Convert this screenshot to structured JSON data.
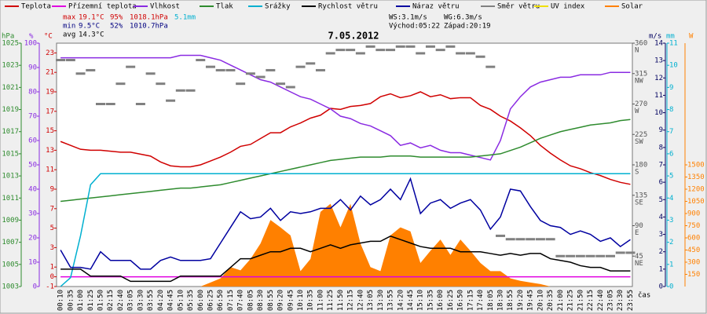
{
  "chart_data": {
    "type": "meteogram",
    "title": "7.05.2012",
    "xlabel": "čas",
    "categories": [
      "00:10",
      "00:35",
      "01:00",
      "01:25",
      "01:50",
      "02:15",
      "02:40",
      "03:05",
      "03:30",
      "03:55",
      "04:20",
      "04:45",
      "05:10",
      "05:35",
      "06:00",
      "06:25",
      "06:50",
      "07:15",
      "07:40",
      "08:05",
      "08:30",
      "08:55",
      "09:20",
      "09:45",
      "10:10",
      "10:35",
      "11:00",
      "11:25",
      "11:50",
      "12:15",
      "12:40",
      "13:05",
      "13:30",
      "13:55",
      "14:20",
      "14:45",
      "15:10",
      "15:35",
      "16:00",
      "16:25",
      "16:50",
      "17:15",
      "17:40",
      "18:05",
      "18:30",
      "18:55",
      "19:20",
      "19:45",
      "20:10",
      "20:35",
      "21:00",
      "21:25",
      "21:50",
      "22:15",
      "22:40",
      "23:05",
      "23:30",
      "23:55"
    ],
    "stats": [
      [
        "max",
        "19.1°C",
        "95%",
        "1018.1hPa",
        "5.1mm"
      ],
      [
        "min",
        "9.5°C",
        "52%",
        "1010.7hPa"
      ],
      [
        "avg",
        "14.3°C"
      ]
    ],
    "info": [
      [
        "WS:3.1m/s",
        "WG:6.3m/s"
      ],
      [
        "Východ:05:22",
        "Západ:20:19"
      ]
    ],
    "axes": {
      "pressure": {
        "title": "hPa",
        "color": "#2e8b2e",
        "lim": [
          1003,
          1025
        ],
        "ticks": [
          1003,
          1005,
          1007,
          1009,
          1011,
          1013,
          1015,
          1017,
          1019,
          1021,
          1023,
          1025
        ]
      },
      "humidity": {
        "title": "%",
        "color": "#8a2be2",
        "lim": [
          0,
          100
        ],
        "ticks": [
          0,
          10,
          20,
          30,
          40,
          50,
          60,
          70,
          80,
          90,
          100
        ]
      },
      "temperature": {
        "title": "°C",
        "color": "#d00000",
        "lim": [
          -1,
          24
        ],
        "ticks": [
          -1,
          0,
          1,
          3,
          5,
          7,
          9,
          11,
          13,
          15,
          17,
          19,
          21,
          23
        ]
      },
      "direction": {
        "color": "#555555",
        "lim": [
          0,
          360
        ],
        "ticks": [
          45,
          90,
          135,
          180,
          225,
          270,
          315,
          360
        ],
        "compass": [
          "NE",
          "E",
          "SE",
          "S",
          "SW",
          "W",
          "NW",
          "N"
        ]
      },
      "wind": {
        "title": "m/s",
        "color": "#000060",
        "lim": [
          0,
          14
        ],
        "ticks": [
          0,
          1,
          2,
          3,
          4,
          5,
          6,
          7,
          8,
          9,
          10,
          11,
          12,
          13,
          14
        ]
      },
      "rain": {
        "title": "mm",
        "color": "#00b0d0",
        "lim": [
          0,
          11
        ],
        "ticks": [
          0,
          1,
          2,
          3,
          4,
          5,
          6,
          7,
          8,
          9,
          10,
          11
        ]
      },
      "solar": {
        "title": "W",
        "color": "#ff8000",
        "lim": [
          0,
          3000
        ],
        "ticks": [
          150,
          300,
          450,
          600,
          750,
          900,
          1050,
          1200,
          1350,
          1500
        ]
      }
    },
    "series": [
      {
        "name": "Teplota",
        "color": "#d00000",
        "axis": "temperature",
        "style": "line",
        "values": [
          13.9,
          13.5,
          13.1,
          13.0,
          13.0,
          12.9,
          12.8,
          12.8,
          12.6,
          12.4,
          11.8,
          11.4,
          11.3,
          11.3,
          11.5,
          11.9,
          12.3,
          12.8,
          13.4,
          13.6,
          14.2,
          14.8,
          14.8,
          15.4,
          15.8,
          16.3,
          16.6,
          17.3,
          17.2,
          17.5,
          17.6,
          17.8,
          18.5,
          18.8,
          18.4,
          18.6,
          19.0,
          18.5,
          18.7,
          18.3,
          18.4,
          18.4,
          17.6,
          17.2,
          16.5,
          16.0,
          15.3,
          14.5,
          13.5,
          12.7,
          12.0,
          11.4,
          11.1,
          10.7,
          10.4,
          10.0,
          9.7,
          9.5
        ]
      },
      {
        "name": "Přízemní teplota",
        "color": "#e000e0",
        "axis": "temperature",
        "style": "line",
        "values": [
          0,
          0,
          0,
          0,
          0,
          0,
          0,
          0,
          0,
          0,
          0,
          0,
          0,
          0,
          0,
          0,
          0,
          0,
          0,
          0,
          0,
          0,
          0,
          0,
          0,
          0,
          0,
          0,
          0,
          0,
          0,
          0,
          0,
          0,
          0,
          0,
          0,
          0,
          0,
          0,
          0,
          0,
          0,
          0,
          0,
          0,
          0,
          0,
          0,
          0,
          0,
          0,
          0,
          0,
          0,
          0,
          0,
          0
        ]
      },
      {
        "name": "Vlhkost",
        "color": "#8a2be2",
        "axis": "humidity",
        "style": "line",
        "values": [
          94,
          94,
          94,
          94,
          94,
          94,
          94,
          94,
          94,
          94,
          94,
          94,
          95,
          95,
          95,
          94,
          93,
          91,
          89,
          87,
          85,
          84,
          82,
          80,
          78,
          77,
          75,
          73,
          70,
          69,
          67,
          66,
          64,
          62,
          58,
          59,
          57,
          58,
          56,
          55,
          55,
          54,
          53,
          52,
          60,
          73,
          78,
          82,
          84,
          85,
          86,
          86,
          87,
          87,
          87,
          88,
          88,
          88
        ]
      },
      {
        "name": "Tlak",
        "color": "#2e8b2e",
        "axis": "pressure",
        "style": "line",
        "values": [
          1010.7,
          1010.8,
          1010.9,
          1011.0,
          1011.1,
          1011.2,
          1011.3,
          1011.4,
          1011.5,
          1011.6,
          1011.7,
          1011.8,
          1011.9,
          1011.9,
          1012.0,
          1012.1,
          1012.2,
          1012.4,
          1012.6,
          1012.8,
          1013.0,
          1013.2,
          1013.4,
          1013.6,
          1013.8,
          1014.0,
          1014.2,
          1014.4,
          1014.5,
          1014.6,
          1014.7,
          1014.7,
          1014.7,
          1014.8,
          1014.8,
          1014.8,
          1014.7,
          1014.7,
          1014.7,
          1014.7,
          1014.7,
          1014.7,
          1014.8,
          1014.9,
          1015.0,
          1015.3,
          1015.6,
          1016.0,
          1016.4,
          1016.7,
          1017.0,
          1017.2,
          1017.4,
          1017.6,
          1017.7,
          1017.8,
          1018.0,
          1018.1
        ]
      },
      {
        "name": "Srážky",
        "color": "#00b0d0",
        "axis": "rain",
        "style": "line",
        "values": [
          0,
          0.4,
          2.3,
          4.6,
          5.1,
          5.1,
          5.1,
          5.1,
          5.1,
          5.1,
          5.1,
          5.1,
          5.1,
          5.1,
          5.1,
          5.1,
          5.1,
          5.1,
          5.1,
          5.1,
          5.1,
          5.1,
          5.1,
          5.1,
          5.1,
          5.1,
          5.1,
          5.1,
          5.1,
          5.1,
          5.1,
          5.1,
          5.1,
          5.1,
          5.1,
          5.1,
          5.1,
          5.1,
          5.1,
          5.1,
          5.1,
          5.1,
          5.1,
          5.1,
          5.1,
          5.1,
          5.1,
          5.1,
          5.1,
          5.1,
          5.1,
          5.1,
          5.1,
          5.1,
          5.1,
          5.1,
          5.1,
          5.1
        ]
      },
      {
        "name": "Rychlost větru",
        "color": "#000000",
        "axis": "wind",
        "style": "line",
        "values": [
          1.0,
          1.0,
          1.0,
          0.6,
          0.6,
          0.6,
          0.6,
          0.3,
          0.3,
          0.3,
          0.3,
          0.3,
          0.6,
          0.6,
          0.6,
          0.6,
          0.6,
          1.1,
          1.6,
          1.6,
          1.8,
          2.0,
          2.0,
          2.2,
          2.2,
          2.0,
          2.2,
          2.4,
          2.2,
          2.4,
          2.5,
          2.6,
          2.6,
          2.9,
          2.7,
          2.5,
          2.3,
          2.2,
          2.2,
          2.2,
          2.0,
          2.0,
          2.0,
          1.9,
          1.8,
          1.9,
          1.8,
          1.9,
          1.9,
          1.6,
          1.5,
          1.4,
          1.2,
          1.1,
          1.1,
          0.9,
          0.9,
          0.9
        ]
      },
      {
        "name": "Náraz větru",
        "color": "#0000a0",
        "axis": "wind",
        "style": "line",
        "values": [
          2.1,
          1.1,
          1.1,
          1.0,
          2.0,
          1.5,
          1.5,
          1.5,
          1.0,
          1.0,
          1.5,
          1.7,
          1.5,
          1.5,
          1.5,
          1.6,
          2.5,
          3.4,
          4.3,
          3.9,
          4.0,
          4.5,
          3.8,
          4.3,
          4.2,
          4.3,
          4.5,
          4.5,
          5.0,
          4.4,
          5.2,
          4.7,
          5.0,
          5.6,
          5.0,
          6.2,
          4.2,
          4.8,
          5.0,
          4.5,
          4.8,
          5.0,
          4.4,
          3.3,
          4.0,
          5.6,
          5.5,
          4.6,
          3.8,
          3.5,
          3.4,
          3.0,
          3.2,
          3.0,
          2.6,
          2.8,
          2.3,
          2.7
        ]
      },
      {
        "name": "Směr větru",
        "color": "#808080",
        "axis": "direction",
        "style": "dash",
        "values": [
          335,
          335,
          315,
          320,
          270,
          270,
          300,
          325,
          270,
          315,
          300,
          275,
          290,
          290,
          335,
          325,
          320,
          320,
          300,
          315,
          310,
          320,
          300,
          295,
          325,
          330,
          320,
          345,
          350,
          350,
          345,
          355,
          350,
          350,
          355,
          355,
          345,
          355,
          350,
          355,
          345,
          345,
          340,
          325,
          75,
          70,
          70,
          70,
          70,
          70,
          45,
          45,
          45,
          45,
          45,
          45,
          50,
          50
        ]
      },
      {
        "name": "UV index",
        "color": "#f0e000",
        "axis": "rain",
        "style": "line",
        "values": [
          null,
          null,
          null,
          null,
          null,
          null,
          null,
          null,
          null,
          null,
          null,
          null,
          null,
          null,
          null,
          null,
          null,
          null,
          null,
          null,
          null,
          null,
          null,
          null,
          null,
          null,
          null,
          null,
          null,
          null,
          null,
          null,
          null,
          null,
          null,
          null,
          null,
          null,
          null,
          null,
          null,
          null,
          null,
          null,
          null,
          null,
          null,
          null,
          null,
          null,
          null,
          null,
          null,
          null,
          null,
          null,
          null,
          null
        ]
      },
      {
        "name": "Solar",
        "color": "#ff8000",
        "axis": "solar",
        "style": "area",
        "values": [
          0,
          0,
          0,
          0,
          0,
          0,
          0,
          0,
          0,
          0,
          0,
          0,
          0,
          0,
          0,
          50,
          100,
          240,
          200,
          340,
          530,
          820,
          730,
          630,
          190,
          340,
          920,
          1020,
          730,
          1020,
          530,
          240,
          190,
          630,
          730,
          680,
          290,
          440,
          580,
          390,
          580,
          440,
          290,
          190,
          190,
          100,
          70,
          50,
          30,
          0,
          0,
          0,
          0,
          0,
          0,
          0,
          0,
          0
        ]
      }
    ]
  }
}
